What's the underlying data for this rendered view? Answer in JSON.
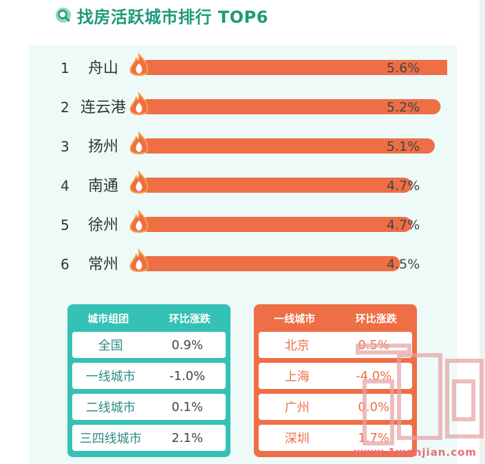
{
  "header": {
    "title": "找房活跃城市排行 TOP6",
    "icon": "search-icon"
  },
  "chart_data": {
    "type": "bar",
    "orientation": "horizontal",
    "title": "找房活跃城市排行 TOP6",
    "categories": [
      "舟山",
      "连云港",
      "扬州",
      "南通",
      "徐州",
      "常州"
    ],
    "ranks": [
      "1",
      "2",
      "3",
      "4",
      "5",
      "6"
    ],
    "values": [
      5.6,
      5.2,
      5.1,
      4.7,
      4.7,
      4.5
    ],
    "value_labels": [
      "5.6%",
      "5.2%",
      "5.1%",
      "4.7%",
      "4.7%",
      "4.5%"
    ],
    "bar_color": "#ee6e46",
    "marker_icon": "flame-icon",
    "grid": false
  },
  "tables": {
    "left": {
      "headers": [
        "城市组团",
        "环比涨跌"
      ],
      "rows": [
        [
          "全国",
          "0.9%"
        ],
        [
          "一线城市",
          "-1.0%"
        ],
        [
          "二线城市",
          "0.1%"
        ],
        [
          "三四线城市",
          "2.1%"
        ]
      ],
      "color": "#35c1b5"
    },
    "right": {
      "headers": [
        "一线城市",
        "环比涨跌"
      ],
      "rows": [
        [
          "北京",
          "0.5%"
        ],
        [
          "上海",
          "-4.0%"
        ],
        [
          "广州",
          "0.0%"
        ],
        [
          "深圳",
          "1.7%"
        ]
      ],
      "color": "#ee6e46"
    }
  },
  "watermark": {
    "url": "www.1wanjian.com"
  }
}
